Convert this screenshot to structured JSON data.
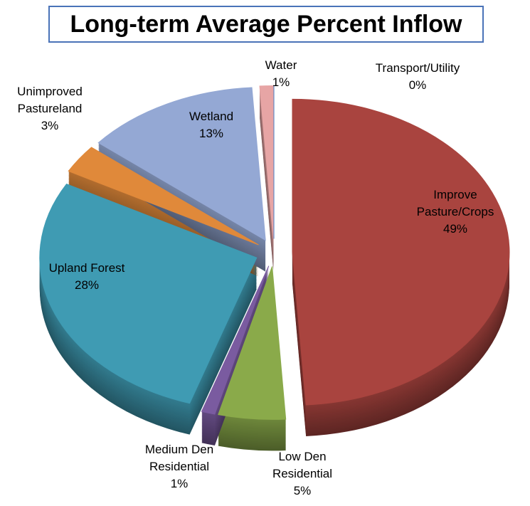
{
  "chart_data": {
    "type": "pie3d",
    "title": "Long-term Average Percent Inflow",
    "categories": [
      "Improve Pasture/Crops",
      "Low Den Residential",
      "Medium Den Residential",
      "Upland Forest",
      "Unimproved Pastureland",
      "Wetland",
      "Water",
      "Transport/Utility"
    ],
    "values": [
      49,
      5,
      1,
      28,
      3,
      13,
      1,
      0
    ],
    "value_labels": [
      "49%",
      "5%",
      "1%",
      "28%",
      "3%",
      "13%",
      "1%",
      "0%"
    ],
    "colors": [
      "#a9443f",
      "#8aaa4a",
      "#7a5ba0",
      "#3f9bb3",
      "#e0893a",
      "#94a8d4",
      "#e7a5a5",
      "#4a7ec4"
    ]
  }
}
